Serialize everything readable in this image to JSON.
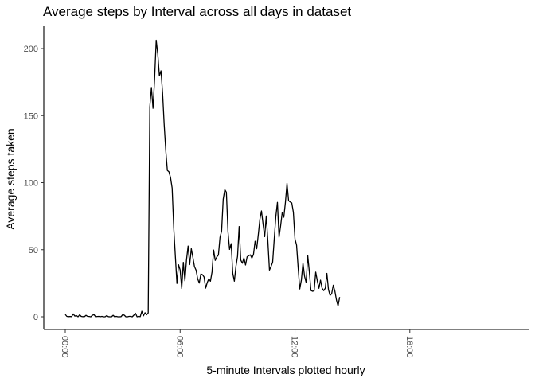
{
  "chart_data": {
    "type": "line",
    "title": "Average steps by Interval across all days in dataset",
    "xlabel": "5-minute Intervals plotted hourly",
    "ylabel": "Average steps taken",
    "x_axis": "5-minute interval time of day (00:00 to 23:55)",
    "xlim": [
      "00:00",
      "23:55"
    ],
    "x_tick_labels": [
      "00:00",
      "06:00",
      "12:00",
      "18:00"
    ],
    "x_tick_label_rotation": 90,
    "ylim": [
      0,
      206
    ],
    "y_ticks": [
      0,
      50,
      100,
      150,
      200
    ],
    "grid": false,
    "legend": "none",
    "x_interval_minutes": 5,
    "series": [
      {
        "values": [
          1.7,
          0.3,
          0.1,
          0.2,
          0.1,
          2.1,
          0.5,
          0.9,
          0.0,
          1.5,
          0.3,
          0.1,
          0.1,
          1.1,
          0.3,
          0.2,
          0.0,
          1.1,
          1.6,
          0.0,
          0.2,
          0.3,
          0.1,
          0.3,
          0.0,
          0.0,
          0.9,
          0.1,
          0.0,
          0.0,
          1.1,
          0.0,
          0.3,
          0.0,
          0.0,
          0.1,
          1.6,
          1.2,
          0.0,
          0.0,
          0.3,
          0.3,
          0.0,
          1.2,
          2.6,
          0.0,
          0.3,
          0.1,
          4.1,
          0.7,
          3.0,
          1.5,
          2.9,
          156.6,
          171.0,
          155.4,
          177.3,
          206.2,
          195.9,
          179.6,
          183.4,
          167.0,
          143.5,
          124.0,
          109.1,
          108.1,
          103.7,
          95.9,
          66.2,
          45.2,
          24.8,
          38.8,
          34.9,
          21.1,
          40.6,
          26.8,
          42.4,
          52.7,
          38.9,
          50.8,
          44.3,
          37.4,
          34.7,
          28.3,
          25.1,
          31.9,
          31.4,
          29.7,
          21.3,
          25.5,
          28.3,
          26.5,
          33.4,
          49.8,
          42.0,
          44.6,
          46.0,
          59.2,
          63.9,
          87.6,
          94.8,
          92.8,
          63.4,
          50.2,
          54.5,
          32.4,
          26.5,
          37.7,
          45.1,
          67.3,
          42.3,
          39.9,
          43.9,
          38.6,
          44.7,
          45.5,
          46.2,
          43.7,
          46.6,
          56.3,
          50.7,
          61.2,
          72.7,
          78.9,
          68.9,
          59.7,
          75.1,
          56.5,
          34.8,
          37.5,
          40.7,
          58.0,
          74.7,
          85.3,
          59.3,
          67.8,
          77.7,
          74.2,
          85.3,
          99.5,
          86.6,
          85.6,
          84.9,
          77.8,
          58.0,
          53.4,
          36.3,
          20.7,
          27.4,
          40.0,
          30.2,
          25.5,
          45.7,
          33.5,
          19.6,
          19.0,
          19.3,
          33.3,
          26.8,
          21.2,
          27.3,
          21.3,
          19.5,
          21.3,
          32.3,
          20.2,
          15.9,
          17.2,
          23.5,
          19.2,
          12.5,
          8.0,
          14.7
        ]
      }
    ]
  }
}
